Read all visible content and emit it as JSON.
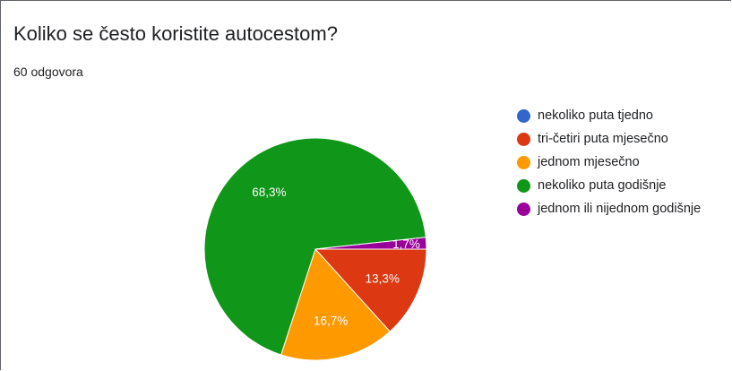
{
  "question": {
    "title": "Koliko se često koristite autocestom?",
    "responses": "60 odgovora"
  },
  "chart_data": {
    "type": "pie",
    "categories": [
      "nekoliko puta tjedno",
      "tri-četiri puta mjesečno",
      "jednom mjesečno",
      "nekoliko puta godišnje",
      "jednom ili nijednom godišnje"
    ],
    "values": [
      0,
      13.3,
      16.7,
      68.3,
      1.7
    ],
    "labels": [
      "",
      "13,3%",
      "16,7%",
      "68,3%",
      "1,7%"
    ],
    "colors": [
      "#3366cc",
      "#dc3912",
      "#ff9900",
      "#109618",
      "#990099"
    ],
    "legend_position": "right"
  }
}
